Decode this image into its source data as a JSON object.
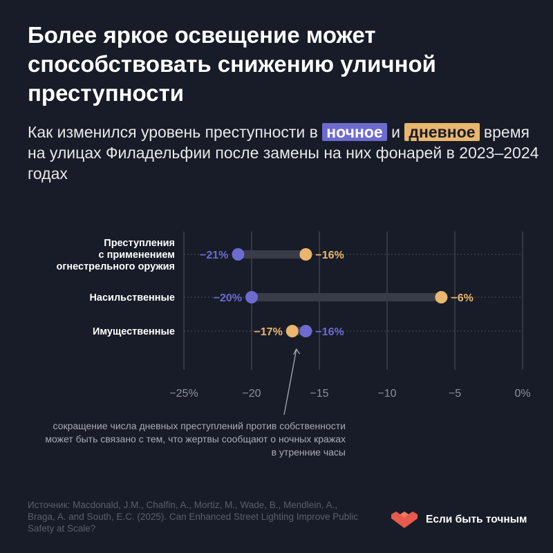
{
  "header": {
    "title": "Более яркое освещение может способствовать снижению уличной преступности",
    "subtitle_part1": "Как изменился уровень преступности в",
    "night_label": "ночное",
    "subtitle_and": "и",
    "day_label": "дневное",
    "subtitle_part2": "время на улицах Филадельфии после замены на них фонарей в 2023–2024 годах"
  },
  "colors": {
    "night": "#6d6ad0",
    "day": "#e9b66d",
    "background": "#181c28"
  },
  "chart_data": {
    "type": "scatter",
    "subtype": "dumbbell",
    "xlim": [
      -25,
      0
    ],
    "xticks": [
      -25,
      -20,
      -15,
      -10,
      -5,
      0
    ],
    "xtick_labels": [
      "−25%",
      "−20",
      "−15",
      "−10",
      "−5",
      "0%"
    ],
    "grid": "vertical",
    "categories": [
      {
        "label_lines": [
          "Преступления",
          "с применением",
          "огнестрельного оружия"
        ],
        "night": -21,
        "day": -16,
        "night_label": "−21%",
        "day_label": "−16%"
      },
      {
        "label_lines": [
          "Насильственные"
        ],
        "night": -20,
        "day": -6,
        "night_label": "−20%",
        "day_label": "−6%"
      },
      {
        "label_lines": [
          "Имущественные"
        ],
        "night": -16,
        "day": -17,
        "night_label": "−16%",
        "day_label": "−17%"
      }
    ]
  },
  "annotation": {
    "text": "сокращение числа дневных преступлений против собственности может быть связано с тем, что жертвы сообщают о ночных кражах в утренние часы"
  },
  "source": "Источник: Macdonald, J.M., Chalfin, A., Mortiz, M., Wade, B., Mendlein, A., Braga, A. and South, E.C. (2025). Can Enhanced Street Lighting Improve Public Safety at Scale?",
  "brand": {
    "name": "Если быть точным",
    "logo_icon": "heart-logo-icon"
  }
}
